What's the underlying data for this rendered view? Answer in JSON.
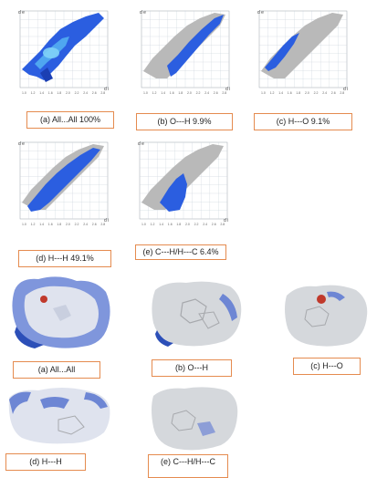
{
  "fingerprint_plots": [
    {
      "id": "a",
      "caption": "(a) All...All  100%",
      "axis_top_label": "d e",
      "axis_right_label": "d i",
      "x_ticks": [
        "1.0",
        "1.2",
        "1.4",
        "1.6",
        "1.8",
        "2.0",
        "2.2",
        "2.4",
        "2.6",
        "2.8"
      ]
    },
    {
      "id": "b",
      "caption": "(b) O---H  9.9%",
      "axis_top_label": "d e",
      "axis_right_label": "d i",
      "x_ticks": [
        "1.0",
        "1.2",
        "1.4",
        "1.6",
        "1.8",
        "2.0",
        "2.2",
        "2.4",
        "2.6",
        "2.8"
      ]
    },
    {
      "id": "c",
      "caption": "(c) H---O  9.1%",
      "axis_top_label": "d e",
      "axis_right_label": "d i",
      "x_ticks": [
        "1.0",
        "1.2",
        "1.4",
        "1.6",
        "1.8",
        "2.0",
        "2.2",
        "2.4",
        "2.6",
        "2.8"
      ]
    },
    {
      "id": "d",
      "caption": "(d) H---H  49.1%",
      "axis_top_label": "d e",
      "axis_right_label": "d i",
      "x_ticks": [
        "1.0",
        "1.2",
        "1.4",
        "1.6",
        "1.8",
        "2.0",
        "2.2",
        "2.4",
        "2.6",
        "2.8"
      ]
    },
    {
      "id": "e",
      "caption": "(e) C---H/H---C 6.4%",
      "axis_top_label": "d e",
      "axis_right_label": "d i",
      "x_ticks": [
        "1.0",
        "1.2",
        "1.4",
        "1.6",
        "1.8",
        "2.0",
        "2.2",
        "2.4",
        "2.6",
        "2.8"
      ]
    }
  ],
  "surface_captions": {
    "a": "(a) All...All",
    "b": "(b) O---H",
    "c": "(c) H---O",
    "d": "(d) H---H",
    "e": "(e) C---H/H---C"
  },
  "colors": {
    "highlight": "#1f4fd8",
    "background_points": "#b9b9b9",
    "caption_border": "#e58b4f",
    "surface_base": "#d9d9d9",
    "surface_blue": "#5a78d0",
    "surface_red": "#c0392b"
  }
}
